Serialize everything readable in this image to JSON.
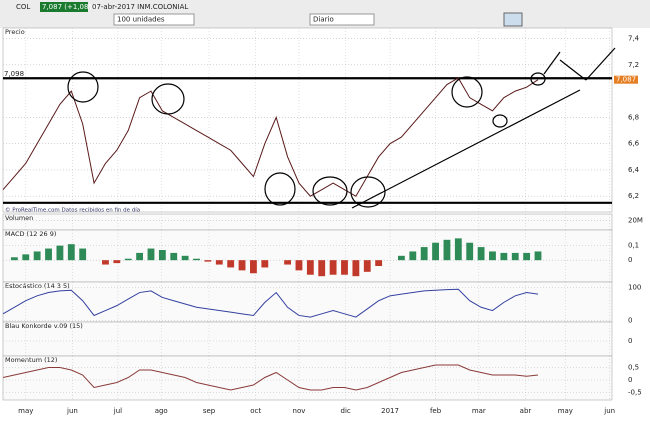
{
  "toolbar": {
    "symbol": "COL",
    "quote": "7,087 (+1,08%)",
    "info": "07-abr-2017 INM.COLONIAL",
    "quantity": "100 unidades",
    "period": "Diario"
  },
  "chart_data": [
    {
      "type": "line",
      "title": "Precio",
      "note": "© ProRealTime.com  Datos recibidos en fin de día",
      "color": "#5a1a1a",
      "xlim": [
        0,
        53.5
      ],
      "xticks": [
        {
          "value": 2.0,
          "label": "may"
        },
        {
          "value": 6.1,
          "label": "jun"
        },
        {
          "value": 10.1,
          "label": "jul"
        },
        {
          "value": 13.9,
          "label": "ago"
        },
        {
          "value": 18.1,
          "label": "sep"
        },
        {
          "value": 22.2,
          "label": "oct"
        },
        {
          "value": 26.0,
          "label": "nov"
        },
        {
          "value": 30.1,
          "label": "dic"
        },
        {
          "value": 34.0,
          "label": "2017"
        },
        {
          "value": 38.0,
          "label": "feb"
        },
        {
          "value": 41.8,
          "label": "mar"
        },
        {
          "value": 45.9,
          "label": "abr"
        },
        {
          "value": 49.4,
          "label": "may"
        },
        {
          "value": 53.3,
          "label": "jun"
        }
      ],
      "ylim": [
        6.08,
        7.45
      ],
      "yticks": [
        {
          "value": 7.4,
          "label": "7,4"
        },
        {
          "value": 7.2,
          "label": "7,2"
        },
        {
          "value": 6.8,
          "label": "6,8"
        },
        {
          "value": 6.6,
          "label": "6,6"
        },
        {
          "value": 6.4,
          "label": "6,4"
        },
        {
          "value": 6.2,
          "label": "6,2"
        }
      ],
      "levels": [
        {
          "value": 7.098,
          "label": "7,098"
        },
        6.15
      ],
      "last": {
        "value": 7.087,
        "label": "7,087"
      },
      "values": [
        6.25,
        6.35,
        6.45,
        6.6,
        6.75,
        6.9,
        7.0,
        6.75,
        6.3,
        6.45,
        6.55,
        6.7,
        6.95,
        7.0,
        6.85,
        6.8,
        6.75,
        6.7,
        6.65,
        6.6,
        6.55,
        6.45,
        6.35,
        6.6,
        6.8,
        6.5,
        6.3,
        6.2,
        6.25,
        6.3,
        6.25,
        6.2,
        6.35,
        6.5,
        6.6,
        6.65,
        6.75,
        6.85,
        6.95,
        7.05,
        7.1,
        6.95,
        6.9,
        6.85,
        6.95,
        7.0,
        7.03,
        7.087
      ]
    },
    {
      "type": "label",
      "title": "Volumen",
      "xlim": [
        0,
        53.5
      ],
      "ylim": [
        0,
        25
      ],
      "yticks": [
        {
          "value": 20,
          "label": "20M"
        }
      ]
    },
    {
      "type": "bar",
      "title": "MACD (12 26 9)",
      "colors": [
        "#2e8b57",
        "#c0392b"
      ],
      "xlim": [
        0,
        53.5
      ],
      "ylim": [
        -0.15,
        0.18
      ],
      "yticks": [
        {
          "value": 0.1,
          "label": "0,1"
        },
        0
      ],
      "values": [
        0.0,
        0.02,
        0.04,
        0.06,
        0.08,
        0.1,
        0.11,
        0.08,
        0.0,
        -0.03,
        -0.02,
        0.01,
        0.05,
        0.08,
        0.07,
        0.05,
        0.03,
        0.01,
        -0.01,
        -0.03,
        -0.05,
        -0.07,
        -0.09,
        -0.05,
        0.0,
        -0.03,
        -0.07,
        -0.1,
        -0.11,
        -0.1,
        -0.1,
        -0.11,
        -0.08,
        -0.04,
        0.0,
        0.03,
        0.06,
        0.09,
        0.12,
        0.14,
        0.15,
        0.12,
        0.09,
        0.06,
        0.05,
        0.05,
        0.05,
        0.06
      ]
    },
    {
      "type": "line",
      "title": "Estocástico (14 3 5)",
      "color": "#3340a0",
      "xlim": [
        0,
        53.5
      ],
      "ylim": [
        -5,
        105
      ],
      "yticks": [
        100,
        0
      ],
      "values": [
        20,
        40,
        60,
        75,
        85,
        90,
        92,
        60,
        15,
        30,
        45,
        65,
        85,
        90,
        70,
        60,
        50,
        40,
        35,
        30,
        25,
        20,
        15,
        55,
        85,
        40,
        15,
        10,
        20,
        30,
        20,
        10,
        35,
        60,
        75,
        80,
        85,
        90,
        92,
        94,
        95,
        60,
        40,
        30,
        55,
        75,
        85,
        80
      ]
    },
    {
      "type": "label",
      "title": "Blau Konkorde v.09 (15)",
      "xlim": [
        0,
        53.5
      ],
      "ylim": [
        -1,
        1
      ],
      "yticks": [
        0
      ]
    },
    {
      "type": "line",
      "title": "Momentum (12)",
      "color": "#8b3a3a",
      "xlim": [
        0,
        53.5
      ],
      "ylim": [
        -0.8,
        0.8
      ],
      "yticks": [
        {
          "value": 0.5,
          "label": "0,5"
        },
        0,
        {
          "value": -0.5,
          "label": "-0,5"
        }
      ],
      "values": [
        0.1,
        0.2,
        0.3,
        0.4,
        0.5,
        0.5,
        0.4,
        0.2,
        -0.3,
        -0.2,
        -0.1,
        0.1,
        0.4,
        0.4,
        0.3,
        0.2,
        0.1,
        -0.1,
        -0.2,
        -0.3,
        -0.4,
        -0.3,
        -0.2,
        0.1,
        0.3,
        0.0,
        -0.3,
        -0.4,
        -0.4,
        -0.3,
        -0.3,
        -0.4,
        -0.3,
        -0.1,
        0.1,
        0.3,
        0.4,
        0.5,
        0.6,
        0.6,
        0.6,
        0.4,
        0.3,
        0.2,
        0.2,
        0.2,
        0.15,
        0.2
      ]
    }
  ]
}
